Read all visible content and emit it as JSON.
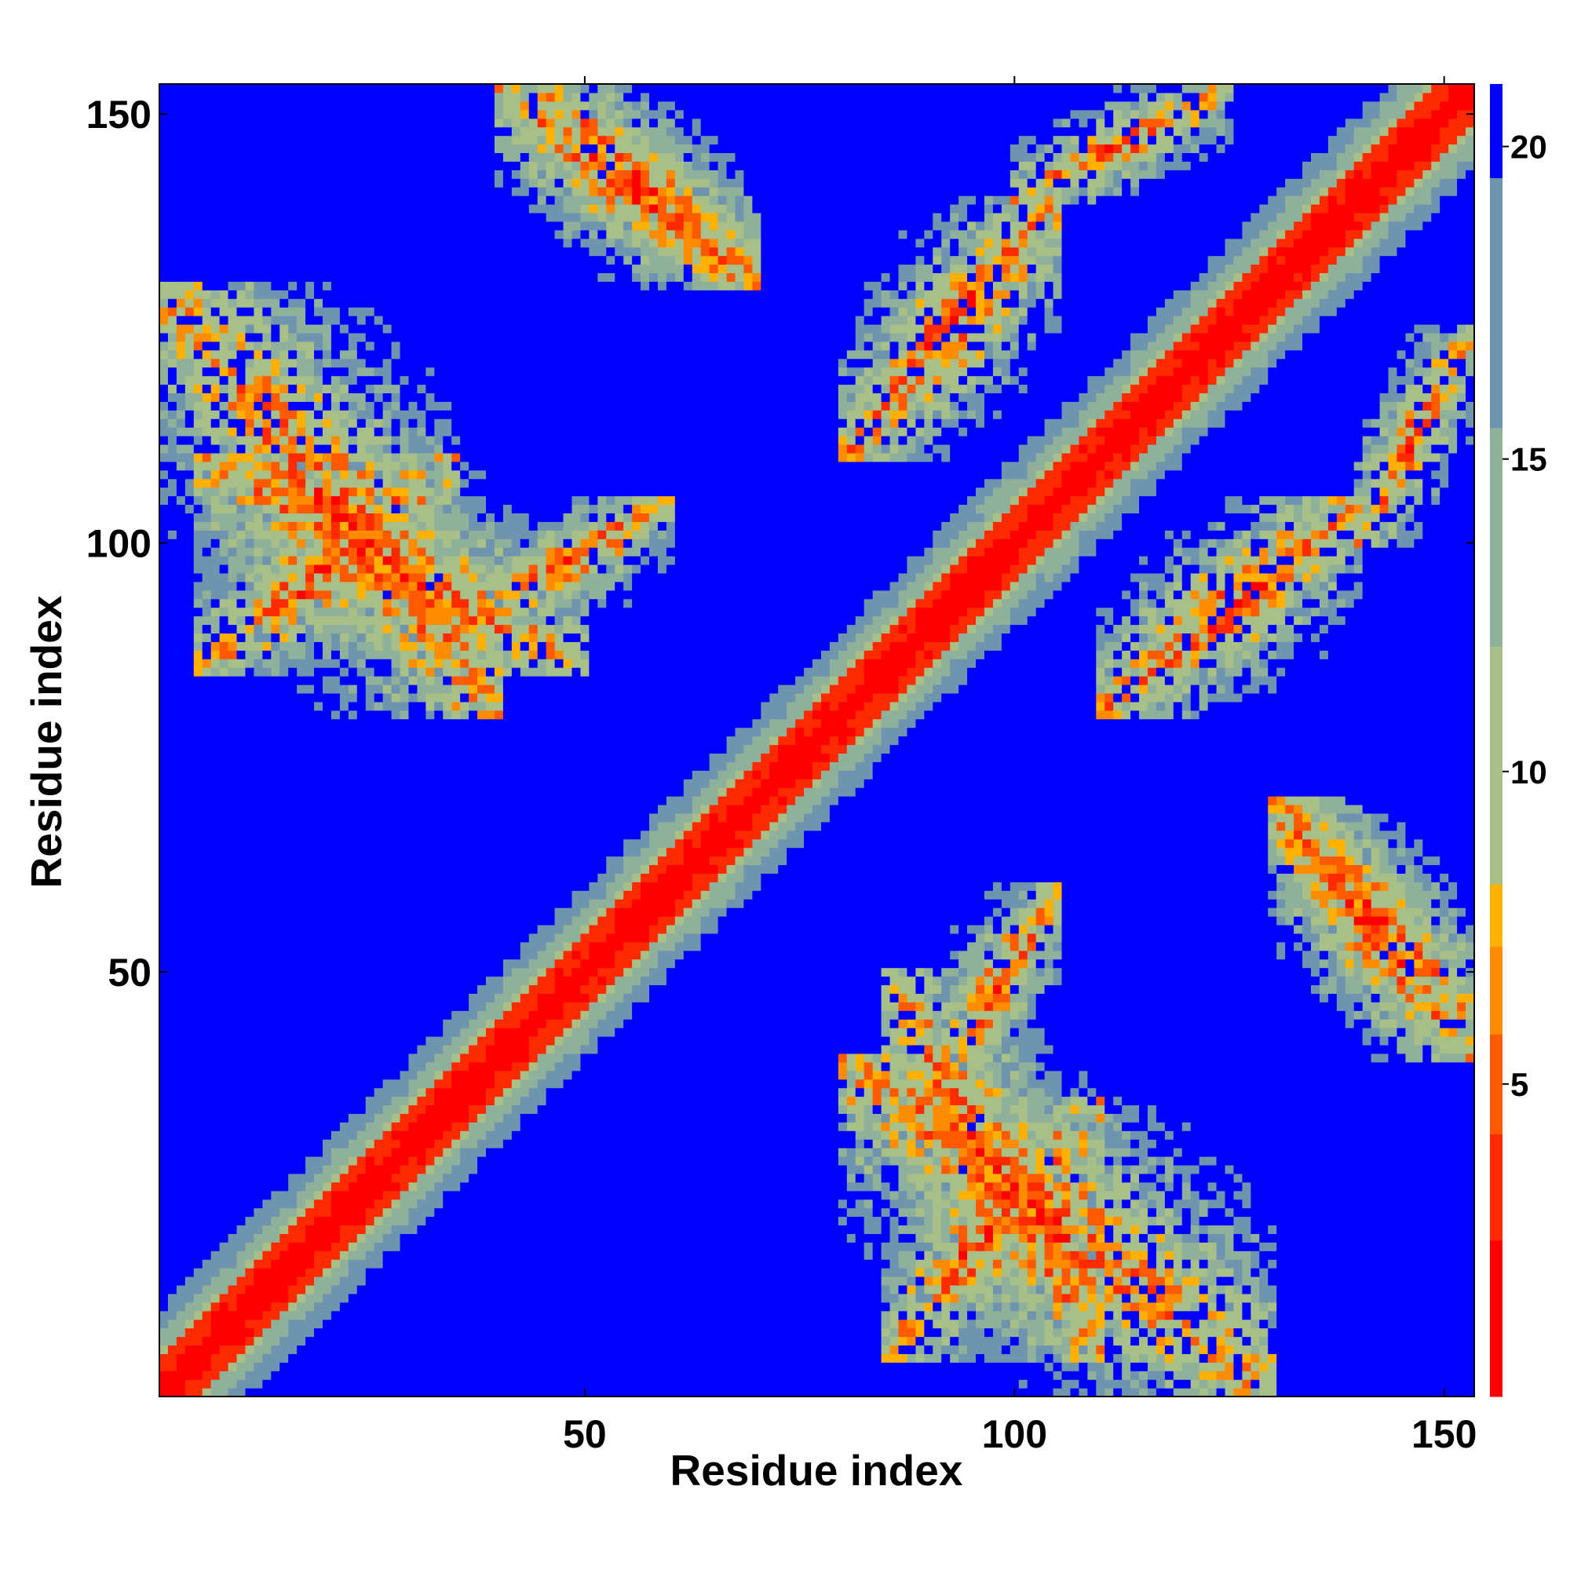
{
  "chart_data": {
    "type": "heatmap",
    "title": "",
    "xlabel": "Residue index",
    "ylabel": "Residue index",
    "n_residues": 153,
    "xlim": [
      1,
      153
    ],
    "ylim": [
      1,
      153
    ],
    "x_ticks": [
      50,
      100,
      150
    ],
    "y_ticks": [
      50,
      100,
      150
    ],
    "colorbar": {
      "range": [
        0,
        21
      ],
      "ticks": [
        5,
        10,
        15,
        20
      ],
      "colors": [
        "#ff0000",
        "#ff2a00",
        "#ff5a00",
        "#ff8c00",
        "#ffb000",
        "#a8bf88",
        "#8fb09a",
        "#6f94ae",
        "#0000ff"
      ],
      "bounds": [
        0,
        2.5,
        4.2,
        5.8,
        7.2,
        8.2,
        12,
        15.5,
        19.5,
        21
      ],
      "location": "right"
    },
    "contacts": {
      "diagonal": "symmetric map; distance grows with |i - j|, saturating (blue) above ~20",
      "contact_regions": [
        {
          "i": [
            1,
            40
          ],
          "j": [
            80,
            130
          ],
          "orientation": "antiparallel"
        },
        {
          "i": [
            40,
            70
          ],
          "j": [
            130,
            153
          ],
          "orientation": "antiparallel"
        },
        {
          "i": [
            5,
            35
          ],
          "j": [
            85,
            110
          ],
          "orientation": "parallel"
        },
        {
          "i": [
            35,
            60
          ],
          "j": [
            90,
            105
          ],
          "orientation": "parallel"
        },
        {
          "i": [
            80,
            105
          ],
          "j": [
            110,
            140
          ],
          "orientation": "parallel"
        },
        {
          "i": [
            100,
            125
          ],
          "j": [
            140,
            153
          ],
          "orientation": "parallel"
        },
        {
          "i": [
            130,
            153
          ],
          "j": [
            45,
            70
          ],
          "orientation": "antiparallel"
        },
        {
          "i": [
            85,
            110
          ],
          "j": [
            5,
            50
          ],
          "orientation": "antiparallel"
        }
      ]
    }
  },
  "colors": {
    "background": "#ffffff",
    "saturated": "#0000ff",
    "contact": "#ff0000"
  }
}
